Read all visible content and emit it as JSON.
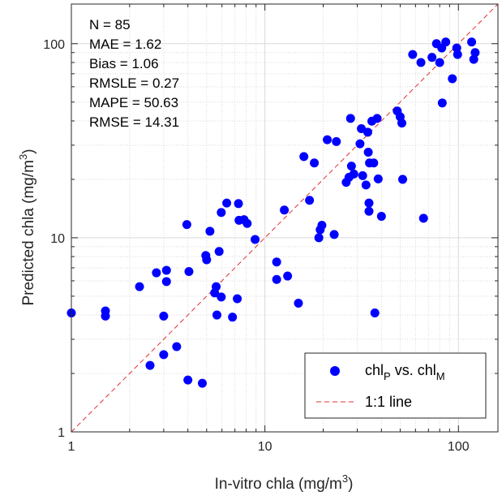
{
  "chart_data": {
    "type": "scatter",
    "xscale": "log",
    "yscale": "log",
    "xlim": [
      1,
      160
    ],
    "ylim": [
      1,
      160
    ],
    "xlabel": {
      "main": "In-vitro chla (mg/m",
      "sup": "3",
      "close": ")"
    },
    "ylabel": {
      "main": "Predicted chla (mg/m",
      "sup": "3",
      "close": ")"
    },
    "xticks": [
      1,
      10,
      100
    ],
    "yticks": [
      1,
      10,
      100
    ],
    "xtick_labels": [
      "1",
      "10",
      "100"
    ],
    "ytick_labels": [
      "1",
      "10",
      "100"
    ],
    "grid": true,
    "minor_grid": true,
    "stats": [
      "N = 85",
      "MAE = 1.62",
      "Bias = 1.06",
      "RMSLE = 0.27",
      "MAPE = 50.63",
      "RMSE = 14.31"
    ],
    "legend_position": "bottom-right",
    "colors": {
      "points": "#0000ff",
      "line": "#e03030",
      "grid": "#d9d9d9",
      "axis": "#262626"
    },
    "series": [
      {
        "type": "scatter",
        "legend": {
          "base1": "chl",
          "sub1": "P",
          "mid": " vs. chl",
          "sub2": "M"
        },
        "points": [
          [
            1.0,
            4.1
          ],
          [
            1.5,
            4.2
          ],
          [
            1.5,
            3.95
          ],
          [
            2.25,
            5.6
          ],
          [
            2.55,
            2.2
          ],
          [
            2.75,
            6.6
          ],
          [
            3.0,
            3.95
          ],
          [
            3.0,
            2.5
          ],
          [
            3.1,
            5.95
          ],
          [
            3.1,
            6.8
          ],
          [
            3.5,
            2.75
          ],
          [
            3.95,
            11.7
          ],
          [
            4.0,
            1.85
          ],
          [
            4.05,
            6.7
          ],
          [
            4.75,
            1.78
          ],
          [
            4.95,
            8.1
          ],
          [
            5.0,
            7.7
          ],
          [
            5.2,
            10.8
          ],
          [
            5.5,
            5.2
          ],
          [
            5.6,
            5.6
          ],
          [
            5.65,
            4.0
          ],
          [
            5.8,
            8.5
          ],
          [
            5.95,
            4.95
          ],
          [
            5.95,
            13.5
          ],
          [
            6.35,
            15.1
          ],
          [
            6.8,
            3.9
          ],
          [
            7.2,
            4.85
          ],
          [
            7.3,
            15.0
          ],
          [
            7.35,
            12.3
          ],
          [
            7.8,
            12.4
          ],
          [
            8.1,
            11.85
          ],
          [
            8.9,
            9.8
          ],
          [
            11.5,
            7.5
          ],
          [
            11.5,
            6.1
          ],
          [
            12.6,
            13.9
          ],
          [
            13.1,
            6.35
          ],
          [
            14.9,
            4.6
          ],
          [
            15.9,
            26.2
          ],
          [
            17.0,
            15.6
          ],
          [
            18.0,
            24.3
          ],
          [
            19.0,
            10.0
          ],
          [
            19.3,
            11.0
          ],
          [
            19.7,
            11.6
          ],
          [
            21.0,
            32.0
          ],
          [
            22.8,
            10.4
          ],
          [
            23.4,
            31.3
          ],
          [
            26.3,
            19.3
          ],
          [
            27.2,
            20.5
          ],
          [
            27.7,
            41.2
          ],
          [
            28.0,
            23.4
          ],
          [
            28.8,
            21.3
          ],
          [
            31.0,
            30.5
          ],
          [
            31.5,
            36.5
          ],
          [
            32.0,
            20.9
          ],
          [
            33.3,
            18.7
          ],
          [
            34.0,
            35.0
          ],
          [
            34.2,
            27.6
          ],
          [
            34.5,
            15.1
          ],
          [
            34.5,
            13.7
          ],
          [
            34.7,
            24.3
          ],
          [
            35.7,
            39.9
          ],
          [
            36.5,
            24.3
          ],
          [
            37.0,
            4.1
          ],
          [
            38.0,
            41.2
          ],
          [
            38.5,
            20.1
          ],
          [
            40.0,
            12.9
          ],
          [
            48.3,
            45.0
          ],
          [
            50.0,
            42.0
          ],
          [
            51.0,
            39.0
          ],
          [
            51.5,
            20.0
          ],
          [
            58.0,
            88.0
          ],
          [
            64.0,
            80.0
          ],
          [
            66.0,
            12.6
          ],
          [
            73.0,
            85.0
          ],
          [
            77.0,
            100.0
          ],
          [
            80.0,
            80.0
          ],
          [
            82.0,
            95.0
          ],
          [
            82.5,
            49.5
          ],
          [
            86.0,
            102.0
          ],
          [
            93.0,
            66.0
          ],
          [
            98.0,
            95.0
          ],
          [
            99.0,
            88.0
          ],
          [
            117.0,
            102.0
          ],
          [
            120.0,
            83.0
          ],
          [
            122.0,
            90.0
          ]
        ]
      },
      {
        "type": "line",
        "style": "dashed",
        "legend": "1:1 line",
        "points": [
          [
            1,
            1
          ],
          [
            160,
            160
          ]
        ]
      }
    ]
  }
}
